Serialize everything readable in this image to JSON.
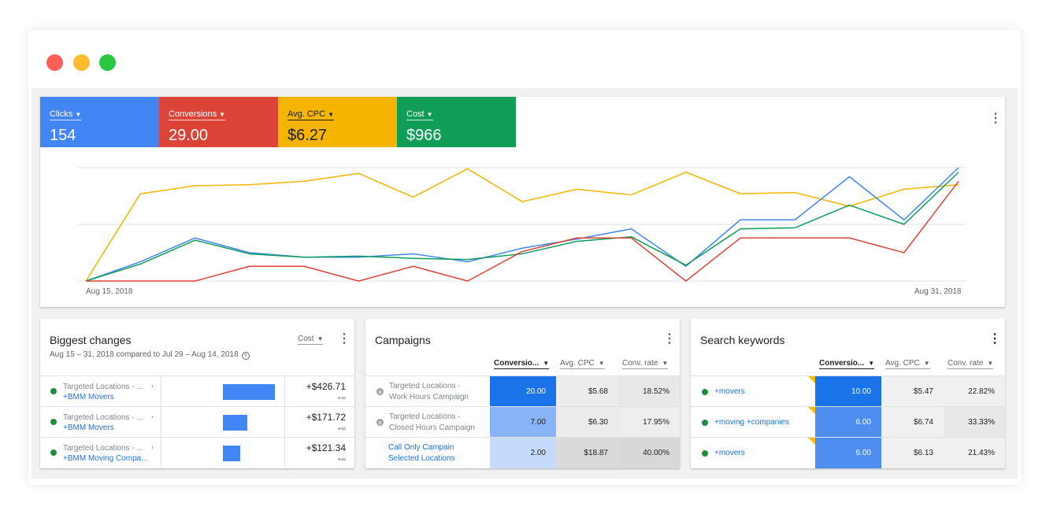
{
  "window": {
    "controls": [
      "close",
      "minimize",
      "maximize"
    ]
  },
  "overview": {
    "metrics": [
      {
        "label": "Clicks",
        "value": "154",
        "color": "#4285f4"
      },
      {
        "label": "Conversions",
        "value": "29.00",
        "color": "#db4437"
      },
      {
        "label": "Avg. CPC",
        "value": "$6.27",
        "color": "#f4b400"
      },
      {
        "label": "Cost",
        "value": "$966",
        "color": "#0f9d58"
      }
    ],
    "more_icon": "more-vert-icon",
    "x_start_label": "Aug 15, 2018",
    "x_end_label": "Aug 31, 2018"
  },
  "chart_data": {
    "type": "line",
    "x": [
      "Aug 15",
      "Aug 16",
      "Aug 17",
      "Aug 18",
      "Aug 19",
      "Aug 20",
      "Aug 21",
      "Aug 22",
      "Aug 23",
      "Aug 24",
      "Aug 25",
      "Aug 26",
      "Aug 27",
      "Aug 28",
      "Aug 29",
      "Aug 30",
      "Aug 31"
    ],
    "xlabel": "",
    "ylabel": "",
    "ylim": [
      0,
      100
    ],
    "grid": true,
    "y_gridlines": [
      0,
      50,
      100
    ],
    "series": [
      {
        "name": "Avg. CPC",
        "color": "#f4b400",
        "values": [
          0,
          77,
          84,
          85,
          88,
          95,
          74,
          99,
          70,
          81,
          76,
          96,
          77,
          78,
          66,
          81,
          85
        ]
      },
      {
        "name": "Clicks",
        "color": "#4285f4",
        "values": [
          0,
          17,
          38,
          25,
          21,
          21,
          24,
          17,
          29,
          37,
          46,
          13,
          54,
          54,
          92,
          54,
          100
        ]
      },
      {
        "name": "Cost",
        "color": "#0f9d58",
        "values": [
          0,
          15,
          36,
          24,
          21,
          22,
          20,
          19,
          24,
          35,
          39,
          14,
          46,
          47,
          67,
          50,
          96
        ]
      },
      {
        "name": "Conversions",
        "color": "#db4437",
        "values": [
          0,
          0,
          0,
          13,
          13,
          0,
          13,
          0,
          26,
          38,
          38,
          0,
          38,
          38,
          38,
          25,
          88
        ]
      }
    ]
  },
  "biggest_changes": {
    "title": "Biggest changes",
    "subtitle": "Aug 15 – 31, 2018 compared to Jul 29 – Aug 14, 2018",
    "metric_dropdown": "Cost",
    "rows": [
      {
        "line1": "Targeted Locations - ...",
        "line2": "+BMM Movers",
        "value": "+$426.71",
        "sub": "+∞",
        "bar_fraction": 1.0
      },
      {
        "line1": "Targeted Locations - ...",
        "line2": "+BMM Movers",
        "value": "+$171.72",
        "sub": "+∞",
        "bar_fraction": 0.47
      },
      {
        "line1": "Targeted Locations - ...",
        "line2": "+BMM Moving Compa...",
        "value": "+$121.34",
        "sub": "+∞",
        "bar_fraction": 0.33
      }
    ]
  },
  "campaigns": {
    "title": "Campaigns",
    "columns": [
      "Conversio...",
      "Avg. CPC",
      "Conv. rate"
    ],
    "rows": [
      {
        "name1": "Targeted Locations -",
        "name2": "Work Hours Campaign",
        "status": "paused",
        "conversions": "20.00",
        "cpc": "$5.68",
        "rate": "18.52%"
      },
      {
        "name1": "Targeted Locations -",
        "name2": "Closed Hours Campaign",
        "status": "paused",
        "conversions": "7.00",
        "cpc": "$6.30",
        "rate": "17.95%"
      },
      {
        "name1": "Call Only Campain",
        "name2": "Selected Locations",
        "status": "none",
        "conversions": "2.00",
        "cpc": "$18.87",
        "rate": "40.00%"
      }
    ]
  },
  "search_keywords": {
    "title": "Search keywords",
    "columns": [
      "Conversio...",
      "Avg. CPC",
      "Conv. rate"
    ],
    "rows": [
      {
        "keyword": "+movers",
        "conversions": "10.00",
        "cpc": "$5.47",
        "rate": "22.82%"
      },
      {
        "keyword": "+moving +companies",
        "conversions": "6.00",
        "cpc": "$6.74",
        "rate": "33.33%"
      },
      {
        "keyword": "+movers",
        "conversions": "6.00",
        "cpc": "$6.13",
        "rate": "21.43%"
      }
    ]
  }
}
